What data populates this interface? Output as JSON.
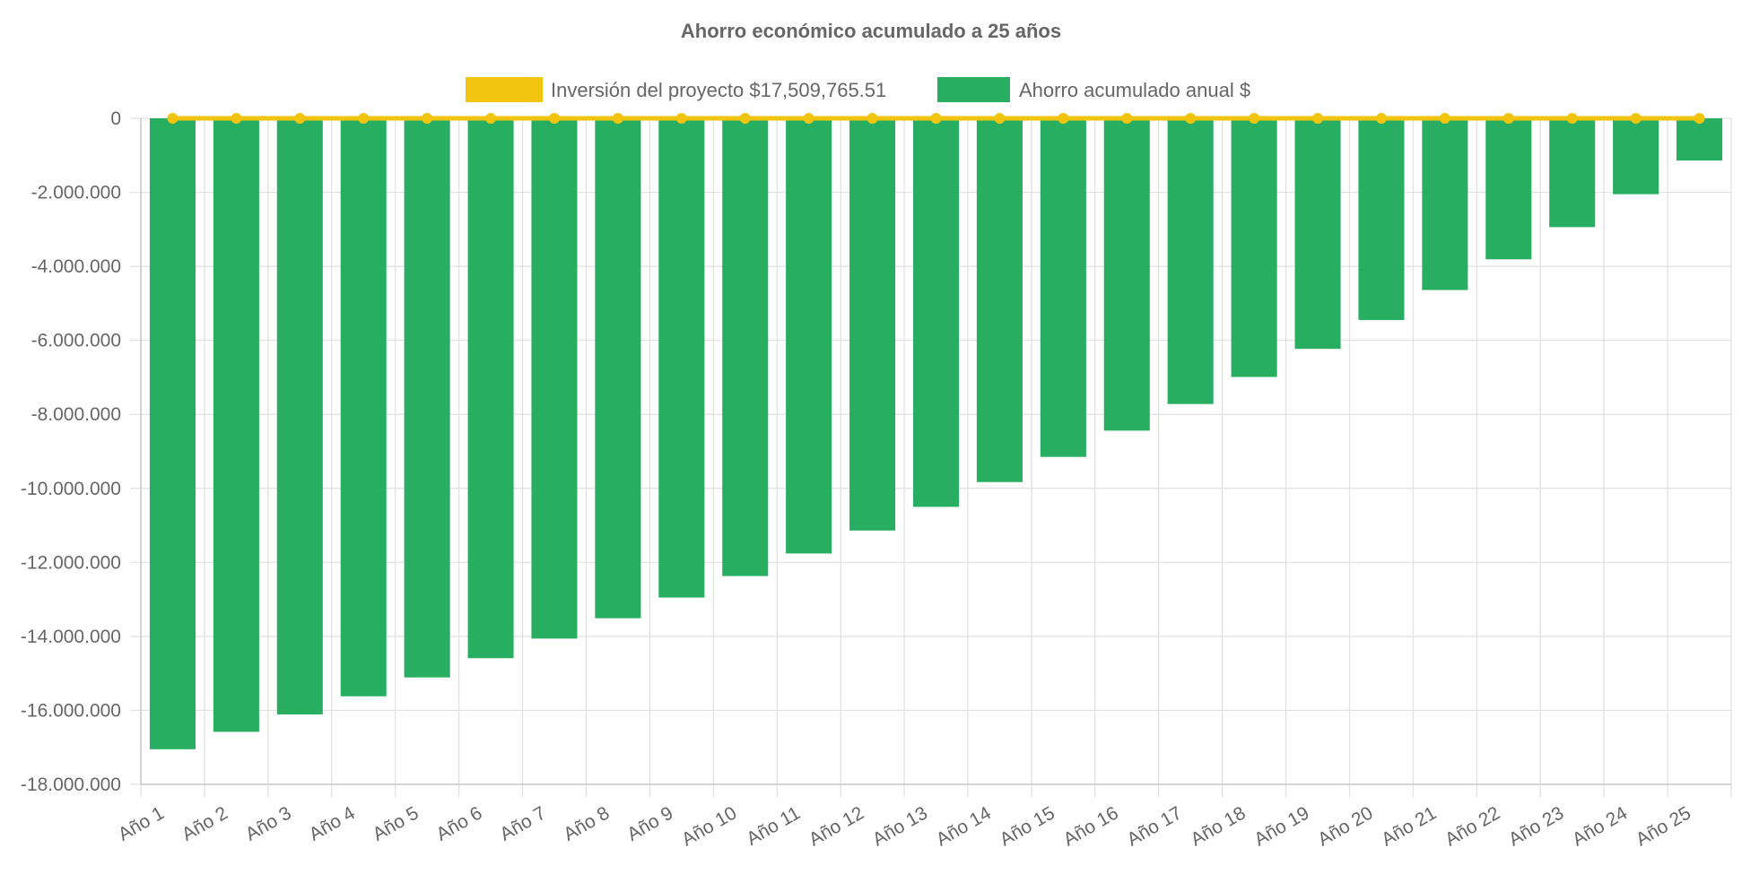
{
  "chart_data": {
    "type": "bar",
    "title": "Ahorro económico acumulado a 25 años",
    "categories": [
      "Año 1",
      "Año 2",
      "Año 3",
      "Año 4",
      "Año 5",
      "Año 6",
      "Año 7",
      "Año 8",
      "Año 9",
      "Año 10",
      "Año 11",
      "Año 12",
      "Año 13",
      "Año 14",
      "Año 15",
      "Año 16",
      "Año 17",
      "Año 18",
      "Año 19",
      "Año 20",
      "Año 21",
      "Año 22",
      "Año 23",
      "Año 24",
      "Año 25"
    ],
    "series": [
      {
        "name": "Inversión del proyecto $17,509,765.51",
        "type": "line",
        "color": "#f1c40f",
        "values": [
          0,
          0,
          0,
          0,
          0,
          0,
          0,
          0,
          0,
          0,
          0,
          0,
          0,
          0,
          0,
          0,
          0,
          0,
          0,
          0,
          0,
          0,
          0,
          0,
          0
        ]
      },
      {
        "name": "Ahorro acumulado anual $",
        "type": "bar",
        "color": "#27ae60",
        "values": [
          -17050000,
          -16580000,
          -16110000,
          -15620000,
          -15110000,
          -14590000,
          -14060000,
          -13510000,
          -12950000,
          -12370000,
          -11760000,
          -11140000,
          -10500000,
          -9830000,
          -9150000,
          -8440000,
          -7720000,
          -6990000,
          -6230000,
          -5450000,
          -4640000,
          -3810000,
          -2940000,
          -2050000,
          -1140000
        ]
      }
    ],
    "ylim": [
      -18000000,
      0
    ],
    "yticks": [
      0,
      -2000000,
      -4000000,
      -6000000,
      -8000000,
      -10000000,
      -12000000,
      -14000000,
      -16000000,
      -18000000
    ],
    "ytick_labels": [
      "0",
      "-2.000.000",
      "-4.000.000",
      "-6.000.000",
      "-8.000.000",
      "-10.000.000",
      "-12.000.000",
      "-14.000.000",
      "-16.000.000",
      "-18.000.000"
    ],
    "grid": true,
    "legend_position": "top"
  }
}
